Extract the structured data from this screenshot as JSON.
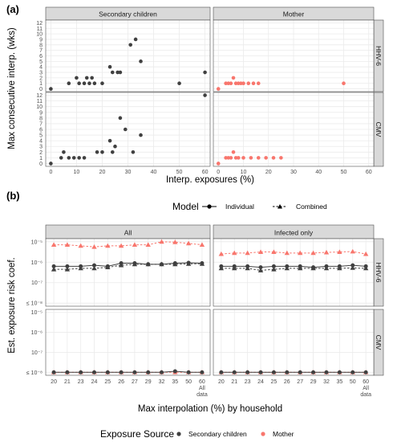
{
  "panels": {
    "a": "(a)",
    "b": "(b)"
  },
  "chart_data": [
    {
      "id": "a",
      "type": "scatter",
      "title": "",
      "xlabel": "Interp. exposures (%)",
      "ylabel": "Max consecutive interp. (wks)",
      "xlim": [
        -2,
        62
      ],
      "ylim": [
        -0.5,
        12.5
      ],
      "xticks": [
        "0",
        "10",
        "20",
        "30",
        "40",
        "50",
        "60"
      ],
      "xtick_values": [
        0,
        10,
        20,
        30,
        40,
        50,
        60
      ],
      "yticks": [
        "0",
        "1",
        "2",
        "3",
        "4",
        "5",
        "6",
        "7",
        "8",
        "9",
        "10",
        "11",
        "12"
      ],
      "yaxis_direction": "up",
      "columns": [
        "Secondary children",
        "Mother"
      ],
      "rows": [
        "HHV-6",
        "CMV"
      ],
      "grid": true,
      "series": [
        {
          "name": "Secondary children",
          "color": "#404040",
          "facet": [
            "Secondary children",
            "HHV-6"
          ],
          "x": [
            0,
            7,
            10,
            11,
            13,
            14,
            15,
            16,
            17,
            20,
            23,
            24,
            26,
            27,
            31,
            33,
            35,
            50,
            60
          ],
          "y": [
            0,
            1,
            2,
            1,
            1,
            2,
            1,
            2,
            1,
            1,
            4,
            3,
            3,
            3,
            8,
            9,
            5,
            1,
            3
          ]
        },
        {
          "name": "Mother",
          "color": "#f8766d",
          "facet": [
            "Mother",
            "HHV-6"
          ],
          "x": [
            0,
            3,
            4,
            5,
            6,
            7,
            8,
            9,
            10,
            12,
            14,
            16,
            50
          ],
          "y": [
            0,
            1,
            1,
            1,
            2,
            1,
            1,
            1,
            1,
            1,
            1,
            1,
            1
          ]
        },
        {
          "name": "Secondary children",
          "color": "#404040",
          "facet": [
            "Secondary children",
            "CMV"
          ],
          "x": [
            0,
            4,
            5,
            7,
            9,
            11,
            13,
            18,
            20,
            23,
            24,
            25,
            27,
            29,
            32,
            35,
            60
          ],
          "y": [
            0,
            1,
            2,
            1,
            1,
            1,
            1,
            2,
            2,
            4,
            2,
            3,
            8,
            6,
            2,
            5,
            12
          ]
        },
        {
          "name": "Mother",
          "color": "#f8766d",
          "facet": [
            "Mother",
            "CMV"
          ],
          "x": [
            0,
            3,
            4,
            5,
            6,
            7,
            8,
            10,
            13,
            16,
            19,
            22,
            25
          ],
          "y": [
            0,
            1,
            1,
            1,
            2,
            1,
            1,
            1,
            1,
            1,
            1,
            1,
            1
          ]
        }
      ]
    },
    {
      "id": "b",
      "type": "line",
      "title": "",
      "xlabel": "Max interpolation (%) by household",
      "ylabel": "Est. exposure risk coef.",
      "categories": [
        "20",
        "21",
        "23",
        "24",
        "25",
        "26",
        "27",
        "29",
        "32",
        "35",
        "50",
        "60\nAll\ndata"
      ],
      "yscale": "log",
      "ylim": [
        "≤ 10^-8",
        "10^-5"
      ],
      "yticks": [
        "≤ 10⁻⁸",
        "10⁻⁷",
        "10⁻⁶",
        "10⁻⁵"
      ],
      "ytick_exponents": [
        -8,
        -7,
        -6,
        -5
      ],
      "columns": [
        "All",
        "Infected only"
      ],
      "rows": [
        "HHV-6",
        "CMV"
      ],
      "grid": true,
      "series": [
        {
          "name": "Mother",
          "model": "Combined",
          "color": "#f8766d",
          "facet": [
            "All",
            "HHV-6"
          ],
          "log10": [
            -5.15,
            -5.15,
            -5.2,
            -5.25,
            -5.2,
            -5.2,
            -5.15,
            -5.15,
            -5.0,
            -5.02,
            -5.08,
            -5.15
          ]
        },
        {
          "name": "Secondary children",
          "model": "Individual",
          "color": "#404040",
          "facet": [
            "All",
            "HHV-6"
          ],
          "log10": [
            -6.2,
            -6.2,
            -6.2,
            -6.15,
            -6.2,
            -6.05,
            -6.05,
            -6.1,
            -6.1,
            -6.05,
            -6.03,
            -6.05
          ]
        },
        {
          "name": "Secondary children",
          "model": "Combined",
          "color": "#404040",
          "facet": [
            "All",
            "HHV-6"
          ],
          "log10": [
            -6.35,
            -6.35,
            -6.3,
            -6.3,
            -6.25,
            -6.15,
            -6.1,
            -6.1,
            -6.1,
            -6.1,
            -6.08,
            -6.08
          ]
        },
        {
          "name": "Mother",
          "model": "Combined",
          "color": "#f8766d",
          "facet": [
            "Infected only",
            "HHV-6"
          ],
          "log10": [
            -5.6,
            -5.55,
            -5.55,
            -5.5,
            -5.5,
            -5.55,
            -5.55,
            -5.55,
            -5.52,
            -5.5,
            -5.48,
            -5.6
          ]
        },
        {
          "name": "Secondary children",
          "model": "Individual",
          "color": "#404040",
          "facet": [
            "Infected only",
            "HHV-6"
          ],
          "log10": [
            -6.2,
            -6.2,
            -6.2,
            -6.25,
            -6.2,
            -6.2,
            -6.2,
            -6.25,
            -6.2,
            -6.2,
            -6.15,
            -6.2
          ]
        },
        {
          "name": "Secondary children",
          "model": "Combined",
          "color": "#404040",
          "facet": [
            "Infected only",
            "HHV-6"
          ],
          "log10": [
            -6.3,
            -6.3,
            -6.3,
            -6.4,
            -6.35,
            -6.3,
            -6.3,
            -6.3,
            -6.3,
            -6.3,
            -6.28,
            -6.3
          ]
        },
        {
          "name": "Mother",
          "model": "Combined",
          "color": "#f8766d",
          "facet": [
            "All",
            "CMV"
          ],
          "log10": [
            -8,
            -8,
            -8,
            -8,
            -8,
            -8,
            -8,
            -8,
            -8,
            -8,
            -8,
            -8
          ]
        },
        {
          "name": "Secondary children",
          "model": "Individual",
          "color": "#404040",
          "facet": [
            "All",
            "CMV"
          ],
          "log10": [
            -8,
            -8,
            -8,
            -8,
            -8,
            -8,
            -8,
            -8,
            -8,
            -7.95,
            -8,
            -8
          ]
        },
        {
          "name": "Mother",
          "model": "Combined",
          "color": "#f8766d",
          "facet": [
            "Infected only",
            "CMV"
          ],
          "log10": [
            -8,
            -8,
            -8,
            -8,
            -8,
            -8,
            -8,
            -8,
            -8,
            -8,
            -8,
            -8
          ]
        },
        {
          "name": "Secondary children",
          "model": "Individual",
          "color": "#404040",
          "facet": [
            "Infected only",
            "CMV"
          ],
          "log10": [
            -8,
            -8,
            -8,
            -8,
            -8,
            -8,
            -8,
            -8,
            -8,
            -8,
            -8,
            -8
          ]
        }
      ],
      "legend_model": {
        "title": "Model",
        "items": [
          "Individual",
          "Combined"
        ],
        "placement": "top"
      },
      "legend_source": {
        "title": "Exposure Source",
        "items": [
          {
            "label": "Secondary children",
            "color": "#404040"
          },
          {
            "label": "Mother",
            "color": "#f8766d"
          }
        ],
        "placement": "bottom"
      }
    }
  ]
}
